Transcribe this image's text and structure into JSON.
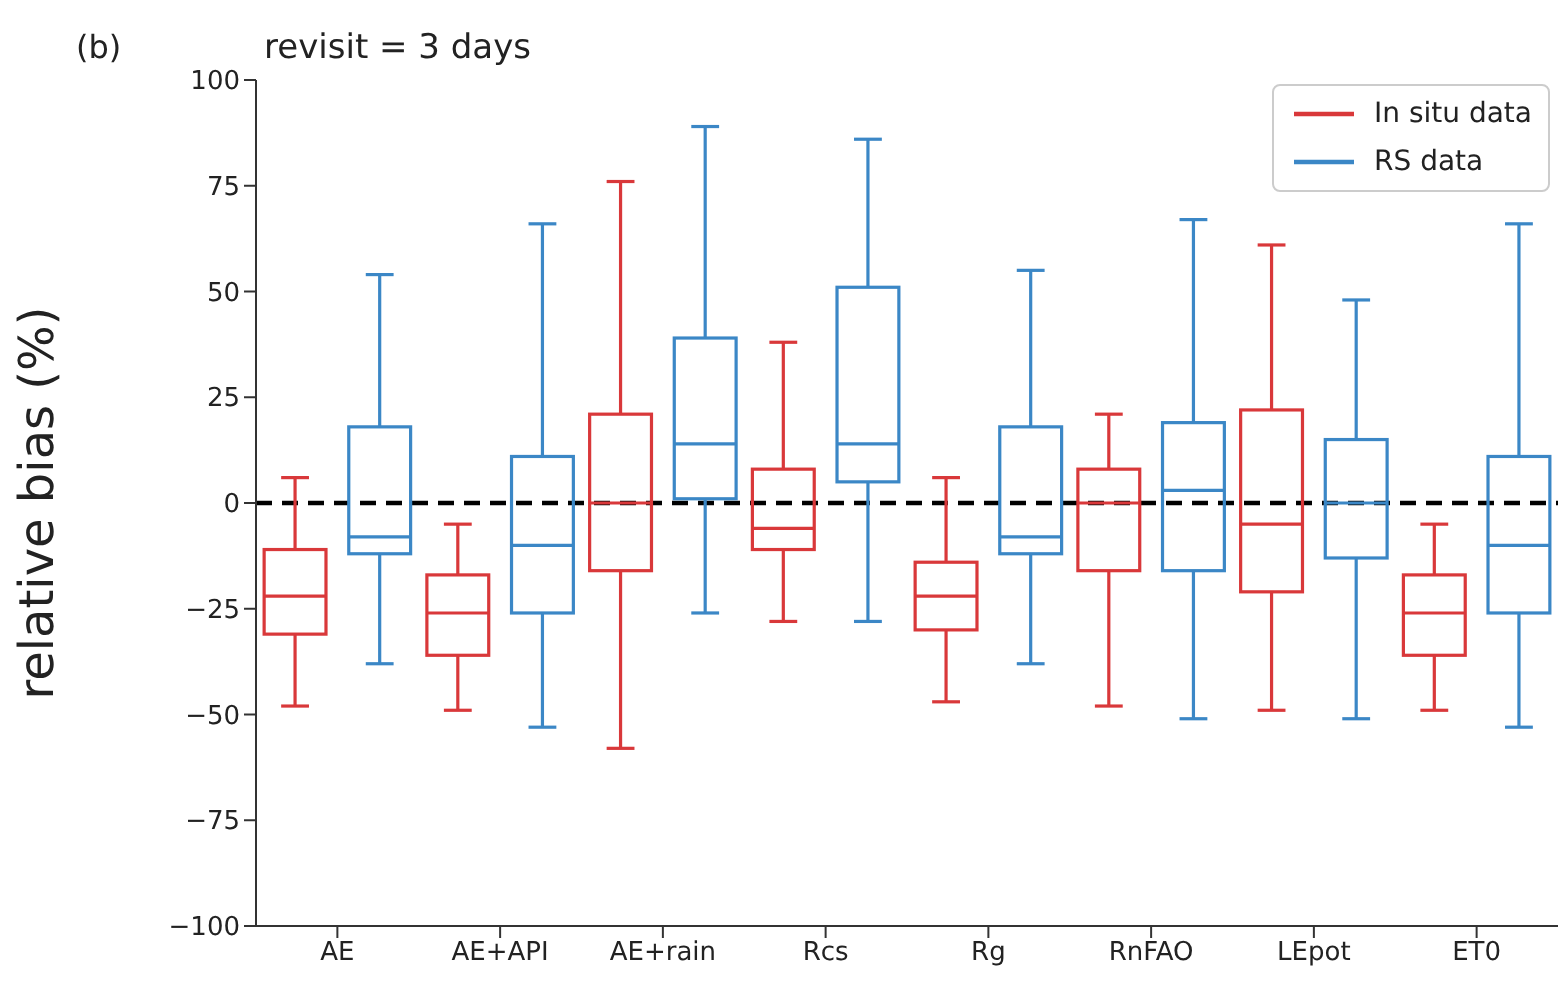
{
  "chart_data": {
    "type": "box",
    "title": "revisit = 3 days",
    "ylabel": "relative bias (%)",
    "annotations": [
      "(b)"
    ],
    "categories": [
      "AE",
      "AE+API",
      "AE+rain",
      "Rcs",
      "Rg",
      "RnFAO",
      "LEpot",
      "ET0"
    ],
    "ylim": [
      -100,
      100
    ],
    "yticks": [
      -100,
      -75,
      -50,
      -25,
      0,
      25,
      50,
      75,
      100
    ],
    "grid": false,
    "legend": "top right",
    "ref_lines": [
      {
        "axis": "y",
        "value": 0,
        "color": "#000000",
        "line_style": "dashed"
      }
    ],
    "series": [
      {
        "name": "In situ data",
        "color": "#d9383a",
        "boxes": [
          {
            "low": -48,
            "q1": -31,
            "median": -22,
            "q3": -11,
            "high": 6
          },
          {
            "low": -49,
            "q1": -36,
            "median": -26,
            "q3": -17,
            "high": -5
          },
          {
            "low": -58,
            "q1": -16,
            "median": 0,
            "q3": 21,
            "high": 76
          },
          {
            "low": -28,
            "q1": -11,
            "median": -6,
            "q3": 8,
            "high": 38
          },
          {
            "low": -47,
            "q1": -30,
            "median": -22,
            "q3": -14,
            "high": 6
          },
          {
            "low": -48,
            "q1": -16,
            "median": 0,
            "q3": 8,
            "high": 21
          },
          {
            "low": -49,
            "q1": -21,
            "median": -5,
            "q3": 22,
            "high": 61
          },
          {
            "low": -49,
            "q1": -36,
            "median": -26,
            "q3": -17,
            "high": -5
          }
        ]
      },
      {
        "name": "RS data",
        "color": "#3b87c6",
        "boxes": [
          {
            "low": -38,
            "q1": -12,
            "median": -8,
            "q3": 18,
            "high": 54
          },
          {
            "low": -53,
            "q1": -26,
            "median": -10,
            "q3": 11,
            "high": 66
          },
          {
            "low": -26,
            "q1": 1,
            "median": 14,
            "q3": 39,
            "high": 89
          },
          {
            "low": -28,
            "q1": 5,
            "median": 14,
            "q3": 51,
            "high": 86
          },
          {
            "low": -38,
            "q1": -12,
            "median": -8,
            "q3": 18,
            "high": 55
          },
          {
            "low": -51,
            "q1": -16,
            "median": 3,
            "q3": 19,
            "high": 67
          },
          {
            "low": -51,
            "q1": -13,
            "median": 0,
            "q3": 15,
            "high": 48
          },
          {
            "low": -53,
            "q1": -26,
            "median": -10,
            "q3": 11,
            "high": 66
          }
        ]
      }
    ]
  }
}
